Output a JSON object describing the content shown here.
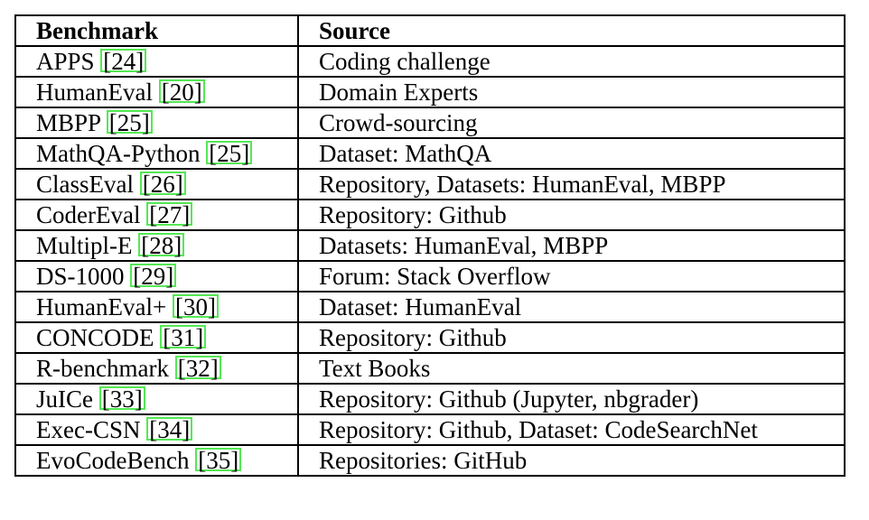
{
  "table": {
    "headers": {
      "benchmark": "Benchmark",
      "source": "Source"
    },
    "rows": [
      {
        "name": "APPS",
        "ref": "24",
        "source": "Coding challenge"
      },
      {
        "name": "HumanEval",
        "ref": "20",
        "source": "Domain Experts"
      },
      {
        "name": "MBPP",
        "ref": "25",
        "source": "Crowd-sourcing"
      },
      {
        "name": "MathQA-Python",
        "ref": "25",
        "source": "Dataset: MathQA"
      },
      {
        "name": "ClassEval",
        "ref": "26",
        "source": "Repository, Datasets: HumanEval, MBPP"
      },
      {
        "name": "CoderEval",
        "ref": "27",
        "source": "Repository: Github"
      },
      {
        "name": "Multipl-E",
        "ref": "28",
        "source": "Datasets: HumanEval, MBPP"
      },
      {
        "name": "DS-1000",
        "ref": "29",
        "source": "Forum: Stack Overflow"
      },
      {
        "name": "HumanEval+",
        "ref": "30",
        "source": "Dataset: HumanEval"
      },
      {
        "name": "CONCODE",
        "ref": "31",
        "source": "Repository: Github"
      },
      {
        "name": "R-benchmark",
        "ref": "32",
        "source": "Text Books"
      },
      {
        "name": "JuICe",
        "ref": "33",
        "source": "Repository: Github (Jupyter, nbgrader)"
      },
      {
        "name": "Exec-CSN",
        "ref": "34",
        "source": "Repository: Github, Dataset: CodeSearchNet"
      },
      {
        "name": "EvoCodeBench",
        "ref": "35",
        "source": "Repositories: GitHub"
      }
    ]
  },
  "colors": {
    "citation_box": "#54e854",
    "border": "#000000",
    "text": "#000000"
  }
}
